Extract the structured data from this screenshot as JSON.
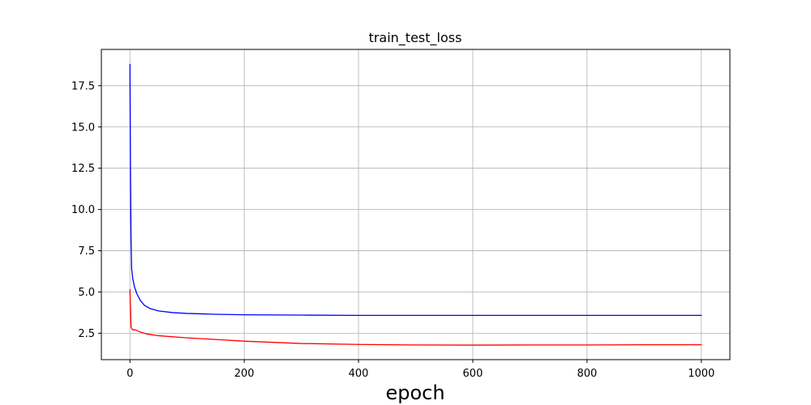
{
  "chart_data": {
    "type": "line",
    "title": "train_test_loss",
    "xlabel": "epoch",
    "ylabel": "",
    "xlim": [
      -50,
      1050
    ],
    "ylim": [
      0.9,
      19.7
    ],
    "xticks": [
      0,
      200,
      400,
      600,
      800,
      1000
    ],
    "xtick_labels": [
      "0",
      "200",
      "400",
      "600",
      "800",
      "1000"
    ],
    "yticks": [
      2.5,
      5.0,
      7.5,
      10.0,
      12.5,
      15.0,
      17.5
    ],
    "ytick_labels": [
      "2.5",
      "5.0",
      "7.5",
      "10.0",
      "12.5",
      "15.0",
      "17.5"
    ],
    "grid": true,
    "series": [
      {
        "name": "blue",
        "color": "#0000ff",
        "x": [
          0,
          1,
          2,
          3,
          5,
          8,
          12,
          18,
          25,
          35,
          50,
          75,
          100,
          150,
          200,
          300,
          400,
          500,
          600,
          700,
          800,
          900,
          1000
        ],
        "y": [
          18.8,
          12.0,
          8.0,
          6.4,
          5.8,
          5.3,
          4.9,
          4.5,
          4.2,
          4.0,
          3.85,
          3.75,
          3.7,
          3.65,
          3.62,
          3.6,
          3.58,
          3.58,
          3.58,
          3.58,
          3.58,
          3.58,
          3.58
        ]
      },
      {
        "name": "red",
        "color": "#ff0000",
        "x": [
          0,
          2,
          5,
          10,
          15,
          20,
          30,
          50,
          100,
          150,
          200,
          300,
          400,
          500,
          600,
          700,
          800,
          900,
          1000
        ],
        "y": [
          5.15,
          2.85,
          2.7,
          2.7,
          2.62,
          2.55,
          2.45,
          2.35,
          2.22,
          2.12,
          2.02,
          1.88,
          1.82,
          1.79,
          1.78,
          1.79,
          1.79,
          1.8,
          1.8
        ]
      }
    ]
  }
}
